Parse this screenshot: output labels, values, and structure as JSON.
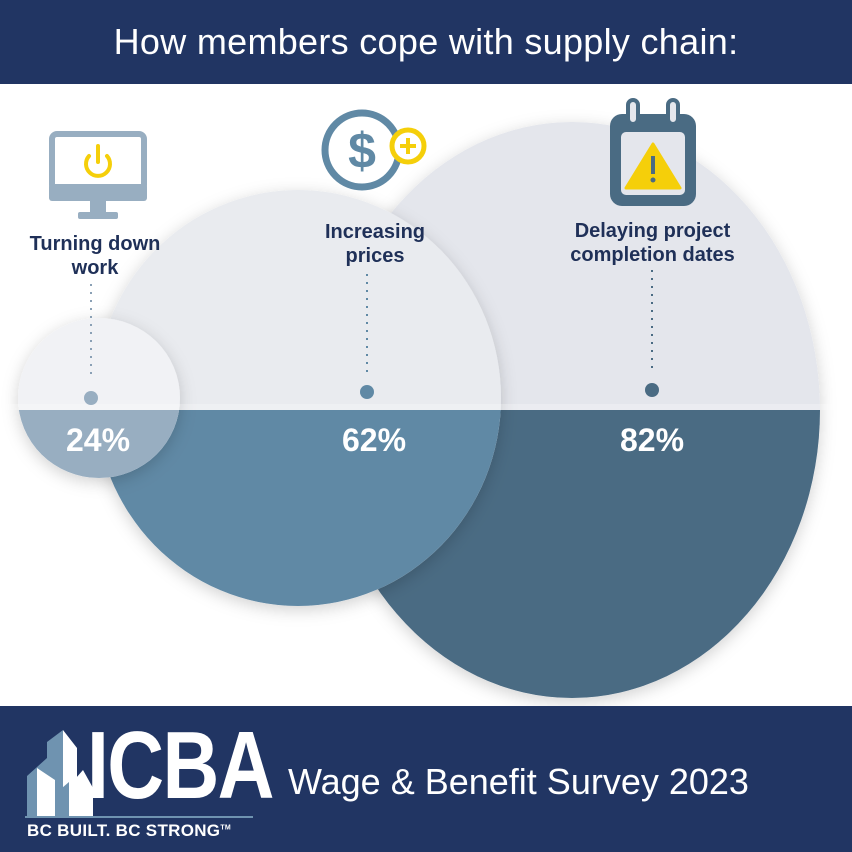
{
  "header": {
    "title": "How members cope with supply chain:"
  },
  "footer": {
    "survey_title": "Wage & Benefit Survey 2023",
    "logo_text": "ICBA",
    "logo_tagline": "BC BUILT. BC STRONG",
    "logo_tm": "TM"
  },
  "colors": {
    "navy": "#213563",
    "yellow": "#f5cf0a",
    "small_circle": "#98aec1",
    "medium_circle": "#6089a5",
    "large_circle": "#4a6b83"
  },
  "chart_data": {
    "type": "bubble",
    "title": "How members cope with supply chain:",
    "categories": [
      "Turning down work",
      "Increasing prices",
      "Delaying project completion dates"
    ],
    "values": [
      24,
      62,
      82
    ],
    "value_labels": [
      "24%",
      "62%",
      "82%"
    ],
    "icons": [
      "monitor-power-icon",
      "dollar-plus-icon",
      "calendar-warning-icon"
    ]
  }
}
